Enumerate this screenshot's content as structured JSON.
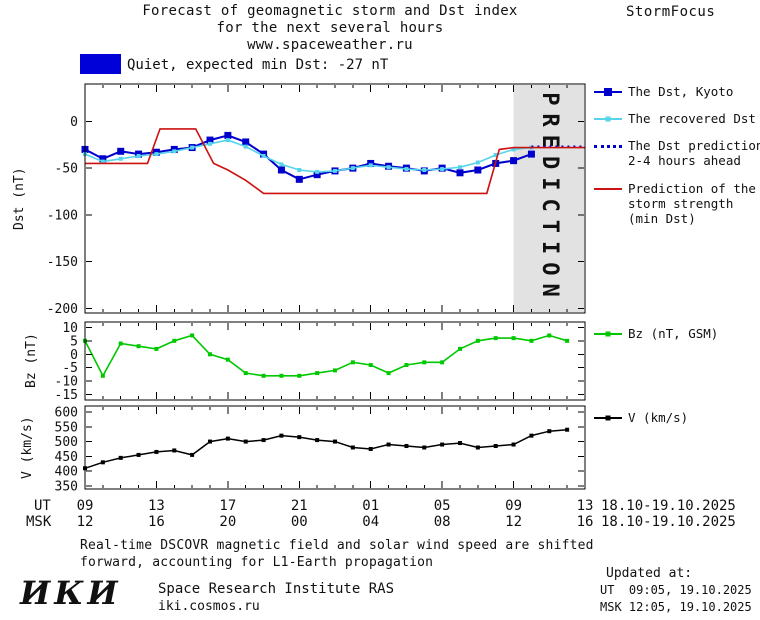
{
  "header": {
    "title_line1": "Forecast of geomagnetic storm and Dst index",
    "title_line2": "for the next several hours",
    "title_line3": "www.spaceweather.ru",
    "brand": "StormFocus"
  },
  "status": {
    "text": "Quiet, expected min Dst: -27 nT",
    "swatch_color": "#0000d9"
  },
  "footer": {
    "note_line1": "Real-time DSCOVR magnetic field and solar wind speed are shifted",
    "note_line2": "forward, accounting for L1-Earth propagation",
    "logo": "ИКИ",
    "institute": "Space Research Institute RAS",
    "site": "iki.cosmos.ru",
    "updated_label": "Updated at:",
    "updated_ut": "UT  09:05, 19.10.2025",
    "updated_msk": "MSK 12:05, 19.10.2025"
  },
  "chart_data": {
    "type": "line",
    "title": "Forecast of geomagnetic storm and Dst index for the next several hours",
    "x_range": [
      9,
      37
    ],
    "x_ticks": {
      "hours": [
        9,
        13,
        17,
        21,
        25,
        29,
        33,
        37
      ],
      "ut_labels": [
        "09",
        "13",
        "17",
        "21",
        "01",
        "05",
        "09",
        "13"
      ],
      "msk_labels": [
        "12",
        "16",
        "20",
        "00",
        "04",
        "08",
        "12",
        "16"
      ],
      "ut_axis_label": "UT",
      "msk_axis_label": "MSK",
      "ut_date_range": "18.10-19.10.2025",
      "msk_date_range": "18.10-19.10.2025",
      "ut_y": 510,
      "msk_y": 526
    },
    "prediction_band": {
      "from": 33,
      "to": 37,
      "label": "PREDICTION",
      "color": "#e2e2e2",
      "text_color": "#b5b5b5"
    },
    "panels": [
      {
        "name": "dst",
        "ylabel": "Dst (nT)",
        "ylim": [
          -205,
          40
        ],
        "yticks": [
          0,
          -50,
          -100,
          -150,
          -200
        ],
        "show_band": true,
        "px": {
          "l": 85,
          "t": 84,
          "r": 585,
          "b": 313
        },
        "series": [
          {
            "name": "The Dst, Kyoto",
            "color": "#0000cd",
            "width": 2,
            "marker": "square",
            "marker_size": 7,
            "x": [
              9,
              10,
              11,
              12,
              13,
              14,
              15,
              16,
              17,
              18,
              19,
              20,
              21,
              22,
              23,
              24,
              25,
              26,
              27,
              28,
              29,
              30,
              31,
              32,
              33,
              34
            ],
            "y": [
              -30,
              -40,
              -32,
              -35,
              -33,
              -30,
              -28,
              -20,
              -15,
              -22,
              -35,
              -52,
              -62,
              -57,
              -53,
              -50,
              -45,
              -48,
              -50,
              -53,
              -50,
              -55,
              -52,
              -45,
              -42,
              -35
            ]
          },
          {
            "name": "The recovered Dst",
            "color": "#55d4ea",
            "width": 1.6,
            "marker": "square",
            "marker_size": 4,
            "x": [
              9,
              10,
              11,
              12,
              13,
              14,
              15,
              16,
              17,
              18,
              19,
              20,
              21,
              22,
              23,
              24,
              25,
              26,
              27,
              28,
              29,
              30,
              31,
              32,
              33,
              34
            ],
            "y": [
              -35,
              -43,
              -40,
              -37,
              -35,
              -32,
              -28,
              -24,
              -20,
              -27,
              -37,
              -46,
              -52,
              -54,
              -53,
              -50,
              -47,
              -49,
              -51,
              -52,
              -51,
              -49,
              -44,
              -36,
              -30,
              -28
            ]
          },
          {
            "name": "The Dst prediction 2-4 hours ahead",
            "color": "#0000cd",
            "width": 2.2,
            "dash": "2 4",
            "marker": "none",
            "x": [
              34,
              35,
              36,
              37
            ],
            "y": [
              -27,
              -27,
              -27,
              -27
            ]
          },
          {
            "name": "Prediction of the storm strength (min Dst)",
            "color": "#cc1111",
            "width": 1.6,
            "marker": "none",
            "x": [
              9,
              12.5,
              13.2,
              15.2,
              16.2,
              17,
              18,
              19,
              31.5,
              32.2,
              33,
              37
            ],
            "y": [
              -45,
              -45,
              -8,
              -8,
              -45,
              -52,
              -63,
              -77,
              -77,
              -30,
              -28,
              -28
            ]
          }
        ]
      },
      {
        "name": "bz",
        "ylabel": "Bz (nT)",
        "ylim": [
          -17,
          12
        ],
        "yticks": [
          10,
          5,
          0,
          -5,
          -10,
          -15
        ],
        "show_band": false,
        "px": {
          "l": 85,
          "t": 322,
          "r": 585,
          "b": 400
        },
        "series": [
          {
            "name": "Bz (nT, GSM)",
            "color": "#00c800",
            "width": 1.6,
            "marker": "square",
            "marker_size": 4,
            "x": [
              9,
              10,
              11,
              12,
              13,
              14,
              15,
              16,
              17,
              18,
              19,
              20,
              21,
              22,
              23,
              24,
              25,
              26,
              27,
              28,
              29,
              30,
              31,
              32,
              33,
              34,
              35,
              36
            ],
            "y": [
              5,
              -8,
              4,
              3,
              2,
              5,
              7,
              0,
              -2,
              -7,
              -8,
              -8,
              -8,
              -7,
              -6,
              -3,
              -4,
              -7,
              -4,
              -3,
              -3,
              2,
              5,
              6,
              6,
              5,
              7,
              5
            ]
          }
        ]
      },
      {
        "name": "v",
        "ylabel": "V (km/s)",
        "ylim": [
          340,
          620
        ],
        "yticks": [
          600,
          550,
          500,
          450,
          400,
          350
        ],
        "show_band": false,
        "px": {
          "l": 85,
          "t": 406,
          "r": 585,
          "b": 489
        },
        "series": [
          {
            "name": "V (km/s)",
            "color": "#000000",
            "width": 1.5,
            "marker": "square",
            "marker_size": 4,
            "x": [
              9,
              10,
              11,
              12,
              13,
              14,
              15,
              16,
              17,
              18,
              19,
              20,
              21,
              22,
              23,
              24,
              25,
              26,
              27,
              28,
              29,
              30,
              31,
              32,
              33,
              34,
              35,
              36
            ],
            "y": [
              410,
              430,
              445,
              455,
              465,
              470,
              455,
              500,
              510,
              500,
              505,
              520,
              515,
              505,
              500,
              480,
              475,
              490,
              485,
              480,
              490,
              495,
              480,
              485,
              490,
              520,
              535,
              540
            ]
          }
        ]
      }
    ],
    "legend": {
      "position": "right",
      "dst": [
        {
          "label_lines": [
            "The Dst, Kyoto"
          ],
          "color": "#0000cd",
          "style": "solid",
          "marker": "square-large"
        },
        {
          "label_lines": [
            "The recovered Dst"
          ],
          "color": "#55d4ea",
          "style": "solid",
          "marker": "square-small"
        },
        {
          "label_lines": [
            "The Dst prediction",
            "2-4 hours ahead"
          ],
          "color": "#0000cd",
          "style": "dotted",
          "marker": "none"
        },
        {
          "label_lines": [
            "Prediction of the",
            "storm strength",
            "(min Dst)"
          ],
          "color": "#cc1111",
          "style": "solid",
          "marker": "none"
        }
      ],
      "bz": {
        "label_lines": [
          "Bz (nT, GSM)"
        ],
        "color": "#00c800",
        "style": "solid",
        "marker": "square-small"
      },
      "v": {
        "label_lines": [
          "V (km/s)"
        ],
        "color": "#000000",
        "style": "solid",
        "marker": "square-small"
      }
    }
  }
}
